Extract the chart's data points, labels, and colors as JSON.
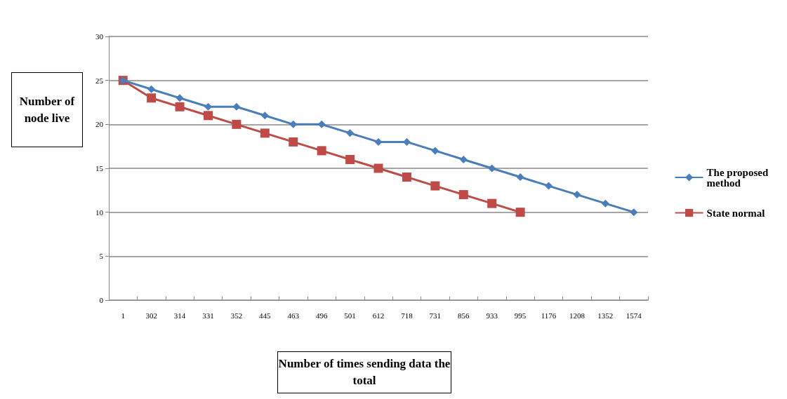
{
  "chart_data": {
    "type": "line",
    "xlabel": "Number of times sending data the total",
    "ylabel": "Number of node live",
    "categories": [
      "1",
      "302",
      "314",
      "331",
      "352",
      "445",
      "463",
      "496",
      "501",
      "612",
      "718",
      "731",
      "856",
      "933",
      "995",
      "1176",
      "1208",
      "1352",
      "1574"
    ],
    "series": [
      {
        "name": "The proposed method",
        "color": "#4a7ebb",
        "marker": "diamond",
        "values": [
          25,
          24,
          23,
          22,
          22,
          21,
          20,
          20,
          19,
          18,
          18,
          17,
          16,
          15,
          14,
          13,
          12,
          11,
          10
        ]
      },
      {
        "name": "State normal",
        "color": "#be4b48",
        "marker": "square",
        "values": [
          25,
          23,
          22,
          21,
          20,
          19,
          18,
          17,
          16,
          15,
          14,
          13,
          12,
          11,
          10,
          null,
          null,
          null,
          null
        ]
      }
    ],
    "ylim": [
      0,
      30
    ],
    "yticks": [
      0,
      5,
      10,
      15,
      20,
      25,
      30
    ],
    "grid": "y",
    "legend": "right"
  }
}
